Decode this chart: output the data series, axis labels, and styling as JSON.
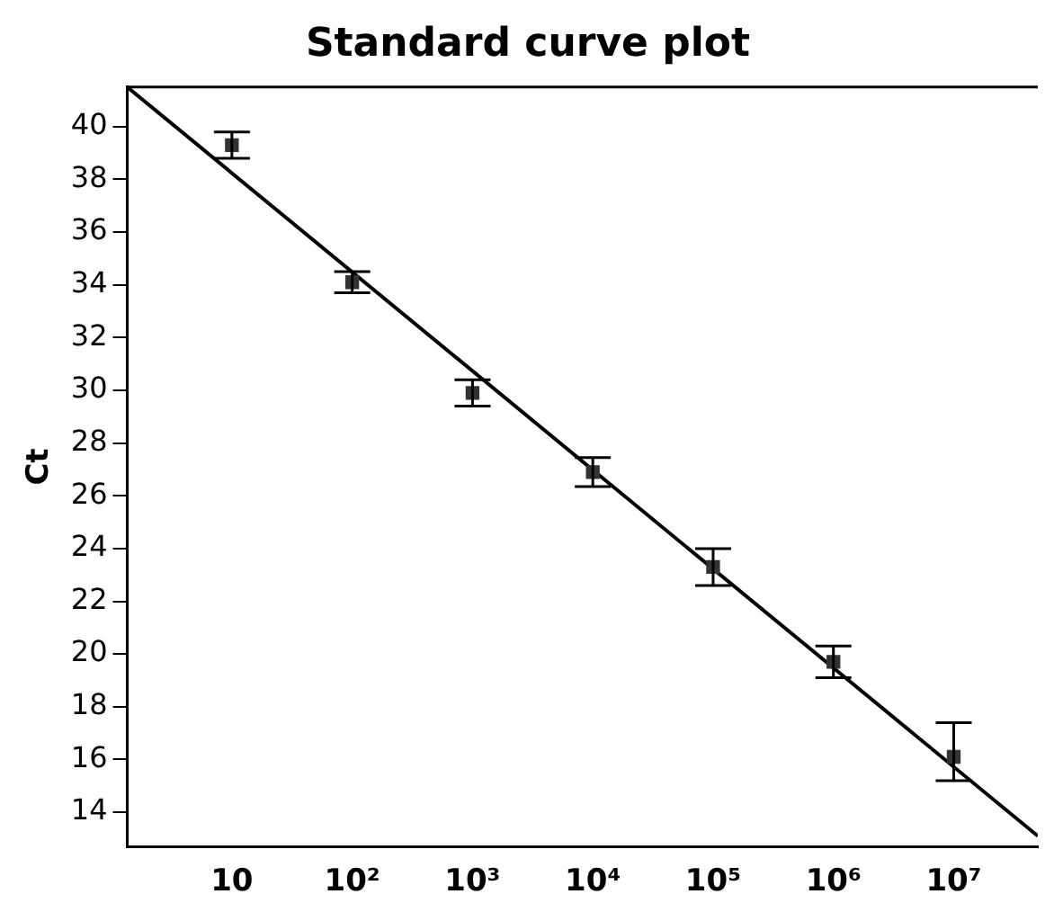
{
  "chart_data": {
    "type": "scatter",
    "title": "Standard curve plot",
    "ylabel": "Ct",
    "log": "x",
    "grid": false,
    "legend": false,
    "marker": "square",
    "xlim": [
      1.35,
      50000000
    ],
    "ylim": [
      12.7,
      41.5
    ],
    "xticks": [
      10,
      {
        "value": 100,
        "label": "10²"
      },
      {
        "value": 1000,
        "label": "10³"
      },
      {
        "value": 10000,
        "label": "10⁴"
      },
      {
        "value": 100000,
        "label": "10⁵"
      },
      {
        "value": 1000000,
        "label": "10⁶"
      },
      {
        "value": 10000000,
        "label": "10⁷"
      }
    ],
    "yticks": [
      14,
      16,
      18,
      20,
      22,
      24,
      26,
      28,
      30,
      32,
      34,
      36,
      38,
      40
    ],
    "series": [
      {
        "color": "#333333",
        "x": [
          10,
          100,
          1000,
          10000,
          100000,
          1000000,
          10000000
        ],
        "values": [
          39.3,
          34.1,
          29.9,
          26.9,
          23.3,
          19.7,
          16.1
        ],
        "errors": [
          0.5,
          0.4,
          0.5,
          0.55,
          0.7,
          0.6,
          [
            15.2,
            17.4
          ]
        ]
      },
      {
        "type": "line",
        "color": "#000000",
        "x": [
          1.35,
          50000000
        ],
        "values": [
          41.5,
          13.1
        ],
        "marker": "none",
        "line_style": "solid"
      }
    ]
  }
}
